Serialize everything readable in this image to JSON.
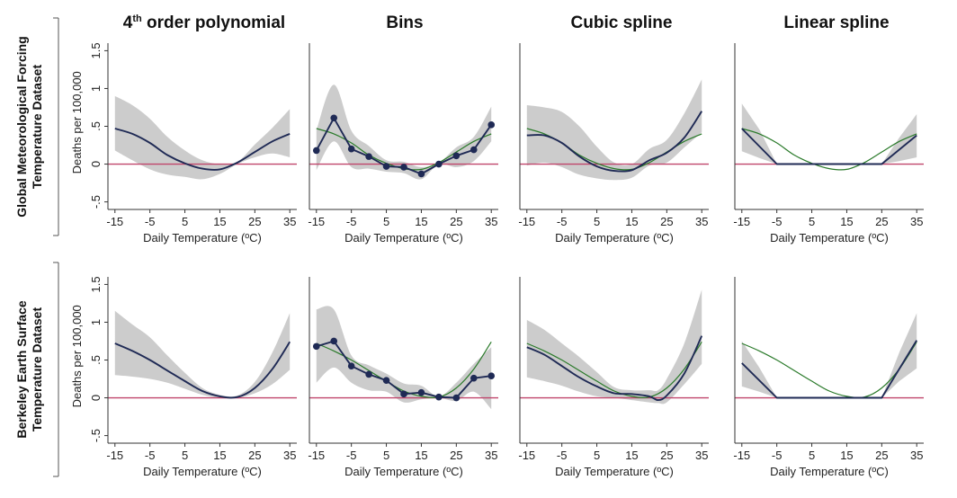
{
  "figure": {
    "col_titles": [
      {
        "main": "4",
        "sup": "th",
        "rest": " order polynomial"
      },
      {
        "main": "Bins",
        "sup": "",
        "rest": ""
      },
      {
        "main": "Cubic spline",
        "sup": "",
        "rest": ""
      },
      {
        "main": "Linear spline",
        "sup": "",
        "rest": ""
      }
    ],
    "row_titles": [
      [
        "Global Meteorological Forcing",
        "Temperature Dataset"
      ],
      [
        "Berkeley Earth Surface",
        "Temperature Dataset"
      ]
    ]
  },
  "colors": {
    "band": "#cccccc",
    "estimate": "#1f2a55",
    "reference_fit": "#2a7a2a",
    "zero_line": "#c0456b",
    "axis": "#333333"
  },
  "chart_data": [
    {
      "type": "line",
      "row": 0,
      "col": 0,
      "xlabel": "Daily Temperature (ºC)",
      "ylabel": "Deaths per 100,000",
      "xticks": [
        -15,
        -5,
        5,
        15,
        25,
        35
      ],
      "yticks": [
        -0.5,
        0,
        0.5,
        1,
        1.5
      ],
      "ytick_labels": [
        "-.5",
        "0",
        ".5",
        "1",
        "1.5"
      ],
      "xlim": [
        -17,
        37
      ],
      "ylim": [
        -0.6,
        1.6
      ],
      "show_ylabel": true,
      "show_yticks": true,
      "zero_line": true,
      "band": {
        "x": [
          -15,
          -10,
          -5,
          0,
          5,
          10,
          15,
          20,
          25,
          30,
          35
        ],
        "lower": [
          0.18,
          0.05,
          -0.07,
          -0.14,
          -0.17,
          -0.2,
          -0.13,
          0,
          0.09,
          0.14,
          0.09
        ],
        "upper": [
          0.9,
          0.78,
          0.6,
          0.36,
          0.18,
          0.05,
          0.0,
          0.03,
          0.26,
          0.48,
          0.73
        ]
      },
      "series": [
        {
          "role": "estimate",
          "x": [
            -15,
            -10,
            -5,
            0,
            5,
            10,
            15,
            20,
            25,
            30,
            35
          ],
          "y": [
            0.47,
            0.4,
            0.28,
            0.12,
            0.01,
            -0.06,
            -0.07,
            0.02,
            0.16,
            0.3,
            0.4
          ]
        }
      ]
    },
    {
      "type": "line",
      "row": 0,
      "col": 1,
      "xlabel": "Daily Temperature (ºC)",
      "ylabel": "",
      "xticks": [
        -15,
        -5,
        5,
        15,
        25,
        35
      ],
      "yticks": [
        -0.5,
        0,
        0.5,
        1,
        1.5
      ],
      "ytick_labels": [
        "-.5",
        "0",
        ".5",
        "1",
        "1.5"
      ],
      "xlim": [
        -17,
        37
      ],
      "ylim": [
        -0.6,
        1.6
      ],
      "show_ylabel": false,
      "show_yticks": false,
      "zero_line": true,
      "band": {
        "x": [
          -15,
          -10,
          -5,
          0,
          5,
          10,
          15,
          20,
          25,
          30,
          35
        ],
        "lower": [
          -0.08,
          0.3,
          -0.04,
          -0.06,
          -0.1,
          -0.12,
          -0.2,
          0,
          -0.04,
          0.04,
          0.3
        ],
        "upper": [
          0.45,
          1.05,
          0.44,
          0.24,
          0.05,
          0.03,
          -0.04,
          0.02,
          0.22,
          0.36,
          0.76
        ]
      },
      "series": [
        {
          "role": "reference_fit",
          "x": [
            -15,
            -10,
            -5,
            0,
            5,
            10,
            15,
            20,
            25,
            30,
            35
          ],
          "y": [
            0.47,
            0.4,
            0.28,
            0.12,
            0.01,
            -0.06,
            -0.07,
            0.02,
            0.16,
            0.3,
            0.4
          ]
        },
        {
          "role": "estimate",
          "markers": true,
          "x": [
            -15,
            -10,
            -5,
            0,
            5,
            10,
            15,
            20,
            25,
            30,
            35
          ],
          "y": [
            0.18,
            0.61,
            0.2,
            0.1,
            -0.03,
            -0.04,
            -0.13,
            0,
            0.11,
            0.19,
            0.52
          ]
        }
      ]
    },
    {
      "type": "line",
      "row": 0,
      "col": 2,
      "xlabel": "Daily Temperature (ºC)",
      "ylabel": "",
      "xticks": [
        -15,
        -5,
        5,
        15,
        25,
        35
      ],
      "yticks": [
        -0.5,
        0,
        0.5,
        1,
        1.5
      ],
      "ytick_labels": [
        "-.5",
        "0",
        ".5",
        "1",
        "1.5"
      ],
      "xlim": [
        -17,
        37
      ],
      "ylim": [
        -0.6,
        1.6
      ],
      "show_ylabel": false,
      "show_yticks": false,
      "zero_line": true,
      "band": {
        "x": [
          -15,
          -10,
          -5,
          0,
          5,
          10,
          15,
          20,
          25,
          30,
          35
        ],
        "lower": [
          -0.02,
          0.02,
          -0.04,
          -0.14,
          -0.19,
          -0.21,
          -0.18,
          -0.02,
          0.02,
          0.22,
          0.42
        ],
        "upper": [
          0.78,
          0.75,
          0.69,
          0.5,
          0.23,
          0.02,
          0.0,
          0.2,
          0.32,
          0.67,
          1.12
        ]
      },
      "series": [
        {
          "role": "reference_fit",
          "x": [
            -15,
            -10,
            -5,
            0,
            5,
            10,
            15,
            20,
            25,
            30,
            35
          ],
          "y": [
            0.47,
            0.4,
            0.28,
            0.12,
            0.01,
            -0.06,
            -0.07,
            0.02,
            0.16,
            0.3,
            0.4
          ]
        },
        {
          "role": "estimate",
          "x": [
            -15,
            -10,
            -5,
            0,
            5,
            10,
            15,
            20,
            25,
            30,
            35
          ],
          "y": [
            0.38,
            0.38,
            0.28,
            0.1,
            -0.03,
            -0.09,
            -0.08,
            0.05,
            0.15,
            0.35,
            0.7
          ]
        }
      ]
    },
    {
      "type": "line",
      "row": 0,
      "col": 3,
      "xlabel": "Daily Temperature (ºC)",
      "ylabel": "",
      "xticks": [
        -15,
        -5,
        5,
        15,
        25,
        35
      ],
      "yticks": [
        -0.5,
        0,
        0.5,
        1,
        1.5
      ],
      "ytick_labels": [
        "-.5",
        "0",
        ".5",
        "1",
        "1.5"
      ],
      "xlim": [
        -17,
        37
      ],
      "ylim": [
        -0.6,
        1.6
      ],
      "show_ylabel": false,
      "show_yticks": false,
      "zero_line": true,
      "band": {
        "x": [
          -15,
          -10,
          -5,
          0,
          25,
          30,
          35
        ],
        "lower": [
          0.17,
          0.08,
          0,
          0,
          0,
          0.04,
          0.09
        ],
        "upper": [
          0.8,
          0.46,
          0,
          0,
          0,
          0.35,
          0.66
        ]
      },
      "series": [
        {
          "role": "reference_fit",
          "x": [
            -15,
            -10,
            -5,
            0,
            5,
            10,
            15,
            20,
            25,
            30,
            35
          ],
          "y": [
            0.47,
            0.4,
            0.28,
            0.12,
            0.01,
            -0.06,
            -0.07,
            0.02,
            0.16,
            0.3,
            0.4
          ]
        },
        {
          "role": "estimate",
          "x": [
            -15,
            -5,
            25,
            35
          ],
          "y": [
            0.47,
            0,
            0,
            0.38
          ]
        }
      ]
    },
    {
      "type": "line",
      "row": 1,
      "col": 0,
      "xlabel": "Daily Temperature (ºC)",
      "ylabel": "Deaths per 100,000",
      "xticks": [
        -15,
        -5,
        5,
        15,
        25,
        35
      ],
      "yticks": [
        -0.5,
        0,
        0.5,
        1,
        1.5
      ],
      "ytick_labels": [
        "-.5",
        "0",
        ".5",
        "1",
        "1.5"
      ],
      "xlim": [
        -17,
        37
      ],
      "ylim": [
        -0.6,
        1.6
      ],
      "show_ylabel": true,
      "show_yticks": true,
      "zero_line": true,
      "band": {
        "x": [
          -15,
          -10,
          -5,
          0,
          5,
          10,
          15,
          20,
          25,
          30,
          35
        ],
        "lower": [
          0.3,
          0.28,
          0.25,
          0.2,
          0.12,
          0.04,
          0,
          0,
          0.06,
          0.18,
          0.37
        ],
        "upper": [
          1.15,
          0.97,
          0.8,
          0.56,
          0.33,
          0.13,
          0.04,
          0.03,
          0.21,
          0.6,
          1.12
        ]
      },
      "series": [
        {
          "role": "estimate",
          "x": [
            -15,
            -10,
            -5,
            0,
            5,
            10,
            15,
            20,
            25,
            30,
            35
          ],
          "y": [
            0.72,
            0.62,
            0.5,
            0.36,
            0.22,
            0.09,
            0.02,
            0.01,
            0.13,
            0.38,
            0.74
          ]
        }
      ]
    },
    {
      "type": "line",
      "row": 1,
      "col": 1,
      "xlabel": "Daily Temperature (ºC)",
      "ylabel": "",
      "xticks": [
        -15,
        -5,
        5,
        15,
        25,
        35
      ],
      "yticks": [
        -0.5,
        0,
        0.5,
        1,
        1.5
      ],
      "ytick_labels": [
        "-.5",
        "0",
        ".5",
        "1",
        "1.5"
      ],
      "xlim": [
        -17,
        37
      ],
      "ylim": [
        -0.6,
        1.6
      ],
      "show_ylabel": false,
      "show_yticks": false,
      "zero_line": true,
      "band": {
        "x": [
          -15,
          -10,
          -5,
          0,
          5,
          10,
          15,
          20,
          25,
          30,
          35
        ],
        "lower": [
          0.2,
          0.4,
          0.2,
          0.1,
          0.08,
          -0.06,
          -0.02,
          0,
          -0.04,
          0.08,
          -0.15
        ],
        "upper": [
          1.17,
          1.17,
          0.56,
          0.43,
          0.32,
          0.19,
          0.16,
          0.02,
          0.2,
          0.45,
          0.67
        ]
      },
      "series": [
        {
          "role": "reference_fit",
          "x": [
            -15,
            -10,
            -5,
            0,
            5,
            10,
            15,
            20,
            25,
            30,
            35
          ],
          "y": [
            0.72,
            0.62,
            0.5,
            0.36,
            0.22,
            0.09,
            0.02,
            0.01,
            0.13,
            0.38,
            0.74
          ]
        },
        {
          "role": "estimate",
          "markers": true,
          "x": [
            -15,
            -10,
            -5,
            0,
            5,
            10,
            15,
            20,
            25,
            30,
            35
          ],
          "y": [
            0.68,
            0.75,
            0.42,
            0.31,
            0.23,
            0.05,
            0.07,
            0.01,
            0,
            0.26,
            0.29
          ]
        }
      ]
    },
    {
      "type": "line",
      "row": 1,
      "col": 2,
      "xlabel": "Daily Temperature (ºC)",
      "ylabel": "",
      "xticks": [
        -15,
        -5,
        5,
        15,
        25,
        35
      ],
      "yticks": [
        -0.5,
        0,
        0.5,
        1,
        1.5
      ],
      "ytick_labels": [
        "-.5",
        "0",
        ".5",
        "1",
        "1.5"
      ],
      "xlim": [
        -17,
        37
      ],
      "ylim": [
        -0.6,
        1.6
      ],
      "show_ylabel": false,
      "show_yticks": false,
      "zero_line": true,
      "band": {
        "x": [
          -15,
          -10,
          -5,
          0,
          5,
          10,
          15,
          20,
          22.5,
          25,
          30,
          35
        ],
        "lower": [
          0.27,
          0.22,
          0.16,
          0.08,
          0.02,
          0,
          -0.03,
          -0.06,
          -0.07,
          -0.06,
          0.18,
          0.45
        ],
        "upper": [
          1.03,
          0.9,
          0.72,
          0.54,
          0.34,
          0.14,
          0.1,
          0.1,
          0.1,
          0.25,
          0.72,
          1.43
        ]
      },
      "series": [
        {
          "role": "reference_fit",
          "x": [
            -15,
            -10,
            -5,
            0,
            5,
            10,
            15,
            20,
            25,
            30,
            35
          ],
          "y": [
            0.72,
            0.62,
            0.5,
            0.36,
            0.22,
            0.09,
            0.02,
            0.01,
            0.13,
            0.38,
            0.74
          ]
        },
        {
          "role": "estimate",
          "x": [
            -15,
            -10,
            -5,
            0,
            5,
            10,
            15,
            20,
            22.5,
            25,
            30,
            35
          ],
          "y": [
            0.67,
            0.57,
            0.42,
            0.27,
            0.15,
            0.06,
            0.05,
            0.02,
            -0.03,
            0.03,
            0.32,
            0.82
          ]
        }
      ]
    },
    {
      "type": "line",
      "row": 1,
      "col": 3,
      "xlabel": "Daily Temperature (ºC)",
      "ylabel": "",
      "xticks": [
        -15,
        -5,
        5,
        15,
        25,
        35
      ],
      "yticks": [
        -0.5,
        0,
        0.5,
        1,
        1.5
      ],
      "ytick_labels": [
        "-.5",
        "0",
        ".5",
        "1",
        "1.5"
      ],
      "xlim": [
        -17,
        37
      ],
      "ylim": [
        -0.6,
        1.6
      ],
      "show_ylabel": false,
      "show_yticks": false,
      "zero_line": true,
      "band": {
        "x": [
          -15,
          -10,
          -5,
          0,
          25,
          30,
          35
        ],
        "lower": [
          0.15,
          0.08,
          0,
          0,
          0,
          0.22,
          0.39
        ],
        "upper": [
          0.75,
          0.4,
          0,
          0,
          0,
          0.6,
          1.12
        ]
      },
      "series": [
        {
          "role": "reference_fit",
          "x": [
            -15,
            -10,
            -5,
            0,
            5,
            10,
            15,
            20,
            25,
            30,
            35
          ],
          "y": [
            0.72,
            0.62,
            0.5,
            0.36,
            0.22,
            0.09,
            0.02,
            0.01,
            0.13,
            0.38,
            0.74
          ]
        },
        {
          "role": "estimate",
          "x": [
            -15,
            -5,
            25,
            35
          ],
          "y": [
            0.46,
            0,
            0,
            0.76
          ]
        }
      ]
    }
  ]
}
